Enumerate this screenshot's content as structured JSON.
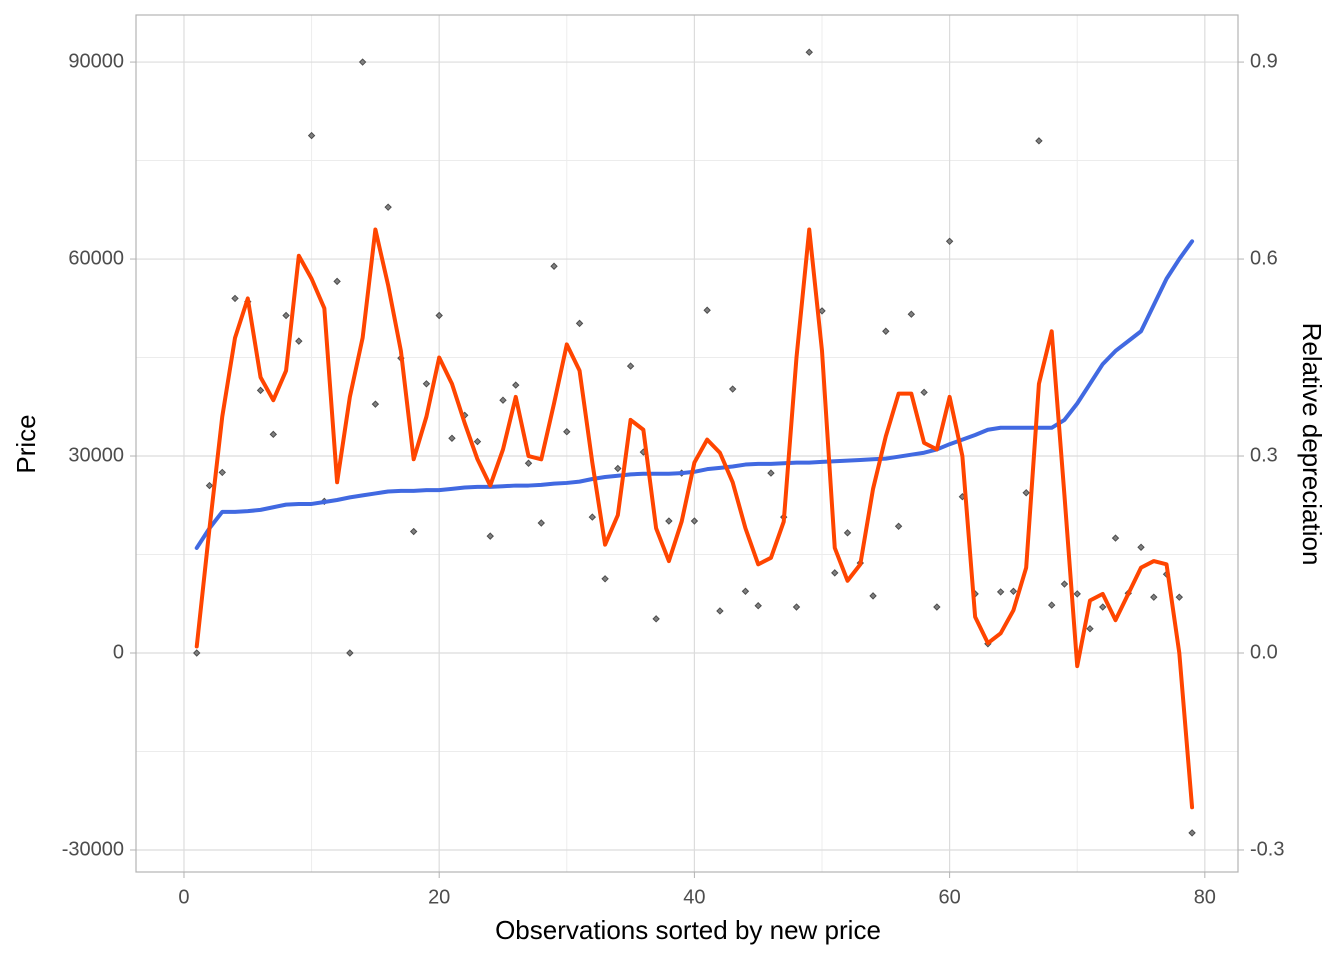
{
  "chart_data": {
    "type": "combo",
    "x_label": "Observations sorted by new price",
    "y_label": "Price",
    "y2_label": "Relative depreciation",
    "x": [
      1,
      2,
      3,
      4,
      5,
      6,
      7,
      8,
      9,
      10,
      11,
      12,
      13,
      14,
      15,
      16,
      17,
      18,
      19,
      20,
      21,
      22,
      23,
      24,
      25,
      26,
      27,
      28,
      29,
      30,
      31,
      32,
      33,
      34,
      35,
      36,
      37,
      38,
      39,
      40,
      41,
      42,
      43,
      44,
      45,
      46,
      47,
      48,
      49,
      50,
      51,
      52,
      53,
      54,
      55,
      56,
      57,
      58,
      59,
      60,
      61,
      62,
      63,
      64,
      65,
      66,
      67,
      68,
      69,
      70,
      71,
      72,
      73,
      74,
      75,
      76,
      77,
      78,
      79
    ],
    "series": [
      {
        "type": "scatter",
        "color": "#4d4d4d",
        "values": [
          0,
          25500,
          27500,
          54000,
          53500,
          40000,
          33300,
          51400,
          47500,
          78800,
          23100,
          56600,
          0,
          90000,
          37900,
          67900,
          44900,
          18500,
          41000,
          51400,
          32700,
          36200,
          32200,
          17800,
          38500,
          40800,
          28900,
          19800,
          58900,
          33700,
          50200,
          20700,
          11300,
          28100,
          43700,
          30600,
          5200,
          20100,
          27400,
          20100,
          52200,
          6400,
          40200,
          9400,
          7200,
          27400,
          20700,
          7000,
          91500,
          52100,
          12200,
          18300,
          13700,
          8700,
          49000,
          19300,
          51600,
          39700,
          7000,
          62700,
          23800,
          9000,
          1400,
          9300,
          9400,
          24400,
          78000,
          7300,
          10500,
          9000,
          3700,
          7000,
          17500,
          9100,
          16100,
          8500,
          12000,
          8500,
          -27400
        ]
      },
      {
        "type": "line",
        "color": "#4169e1",
        "values": [
          16000,
          19000,
          21500,
          21500,
          21600,
          21800,
          22200,
          22600,
          22700,
          22700,
          23000,
          23300,
          23700,
          24000,
          24300,
          24600,
          24700,
          24700,
          24800,
          24800,
          25000,
          25200,
          25300,
          25300,
          25400,
          25500,
          25500,
          25600,
          25800,
          25900,
          26100,
          26500,
          26800,
          27000,
          27200,
          27300,
          27300,
          27300,
          27400,
          27600,
          28000,
          28200,
          28400,
          28700,
          28800,
          28800,
          28900,
          29000,
          29000,
          29100,
          29200,
          29300,
          29400,
          29500,
          29600,
          29900,
          30200,
          30500,
          31000,
          31800,
          32500,
          33200,
          34000,
          34300,
          34300,
          34300,
          34300,
          34300,
          35500,
          38000,
          41000,
          44000,
          46000,
          47500,
          49000,
          53000,
          57000,
          60000,
          62700
        ]
      },
      {
        "type": "line",
        "axis": "y2",
        "color": "#ff4500",
        "values": [
          0.01,
          0.19,
          0.36,
          0.48,
          0.54,
          0.42,
          0.385,
          0.43,
          0.605,
          0.57,
          0.525,
          0.26,
          0.39,
          0.48,
          0.645,
          0.56,
          0.46,
          0.295,
          0.36,
          0.45,
          0.41,
          0.35,
          0.295,
          0.255,
          0.31,
          0.39,
          0.3,
          0.295,
          0.38,
          0.47,
          0.43,
          0.29,
          0.165,
          0.21,
          0.355,
          0.34,
          0.19,
          0.14,
          0.2,
          0.29,
          0.325,
          0.305,
          0.26,
          0.19,
          0.135,
          0.145,
          0.2,
          0.45,
          0.645,
          0.46,
          0.16,
          0.11,
          0.135,
          0.25,
          0.33,
          0.395,
          0.395,
          0.32,
          0.31,
          0.39,
          0.3,
          0.055,
          0.015,
          0.03,
          0.065,
          0.13,
          0.41,
          0.49,
          0.24,
          -0.02,
          0.08,
          0.09,
          0.05,
          0.09,
          0.13,
          0.14,
          0.135,
          0.0,
          -0.235
        ]
      }
    ],
    "xlim": [
      -3.76,
      82.6
    ],
    "xticks": [
      0,
      20,
      40,
      60,
      80
    ],
    "ylim": [
      -33354,
      97167
    ],
    "yticks": [
      -30000,
      0,
      30000,
      60000,
      90000
    ],
    "y2lim": [
      -0.33354,
      0.97167
    ],
    "y2ticks": [
      -0.3,
      {
        "value": 0,
        "label": "0.0"
      },
      0.3,
      0.6,
      0.9
    ],
    "grid": true
  }
}
